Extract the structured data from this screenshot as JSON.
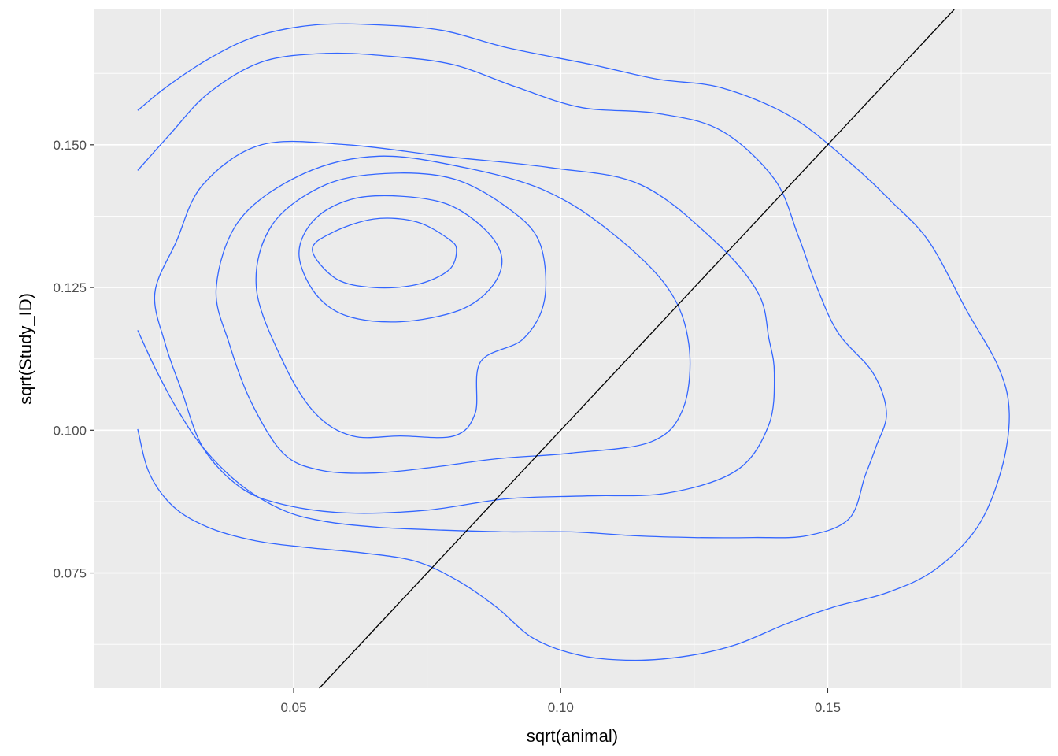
{
  "chart_data": {
    "type": "density_2d",
    "xlabel": "sqrt(animal)",
    "ylabel": "sqrt(Study_ID)",
    "xlim": [
      0.0127,
      0.1918
    ],
    "ylim": [
      0.0548,
      0.1737
    ],
    "x_ticks": [
      0.05,
      0.1,
      0.15
    ],
    "x_tick_labels": [
      "0.05",
      "0.10",
      "0.15"
    ],
    "y_ticks": [
      0.075,
      0.1,
      0.125,
      0.15
    ],
    "y_tick_labels": [
      "0.075",
      "0.100",
      "0.125",
      "0.150"
    ],
    "grid": true,
    "colors": {
      "panel_background": "#ebebeb",
      "grid_major": "#ffffff",
      "contour": "#3366ff",
      "reference_line": "#000000",
      "tick_label": "#4d4d4d"
    },
    "reference_line": {
      "intercept": 0,
      "slope": 1,
      "label": "y = x"
    },
    "contours": [
      {
        "level": 1,
        "closed": false,
        "points": [
          [
            0.0208,
            0.1002
          ],
          [
            0.023,
            0.0924
          ],
          [
            0.0275,
            0.0866
          ],
          [
            0.034,
            0.083
          ],
          [
            0.0425,
            0.0807
          ],
          [
            0.052,
            0.0795
          ],
          [
            0.063,
            0.0785
          ],
          [
            0.073,
            0.077
          ],
          [
            0.081,
            0.0735
          ],
          [
            0.088,
            0.069
          ],
          [
            0.095,
            0.0635
          ],
          [
            0.104,
            0.0605
          ],
          [
            0.114,
            0.0597
          ],
          [
            0.124,
            0.0605
          ],
          [
            0.133,
            0.0625
          ],
          [
            0.142,
            0.066
          ],
          [
            0.151,
            0.069
          ],
          [
            0.161,
            0.0715
          ],
          [
            0.17,
            0.0755
          ],
          [
            0.178,
            0.083
          ],
          [
            0.1825,
            0.093
          ],
          [
            0.184,
            0.103
          ],
          [
            0.182,
            0.111
          ],
          [
            0.176,
            0.121
          ],
          [
            0.169,
            0.133
          ],
          [
            0.162,
            0.14
          ],
          [
            0.154,
            0.147
          ],
          [
            0.143,
            0.155
          ],
          [
            0.13,
            0.16
          ],
          [
            0.118,
            0.1615
          ],
          [
            0.106,
            0.164
          ],
          [
            0.09,
            0.167
          ],
          [
            0.078,
            0.17
          ],
          [
            0.066,
            0.171
          ],
          [
            0.054,
            0.171
          ],
          [
            0.043,
            0.169
          ],
          [
            0.034,
            0.165
          ],
          [
            0.026,
            0.16
          ],
          [
            0.0208,
            0.156
          ]
        ]
      },
      {
        "level": 2,
        "closed": false,
        "points": [
          [
            0.0208,
            0.1175
          ],
          [
            0.024,
            0.111
          ],
          [
            0.028,
            0.104
          ],
          [
            0.033,
            0.097
          ],
          [
            0.04,
            0.0905
          ],
          [
            0.048,
            0.086
          ],
          [
            0.056,
            0.084
          ],
          [
            0.066,
            0.083
          ],
          [
            0.078,
            0.0825
          ],
          [
            0.09,
            0.0822
          ],
          [
            0.102,
            0.0822
          ],
          [
            0.114,
            0.0815
          ],
          [
            0.125,
            0.0812
          ],
          [
            0.136,
            0.0812
          ],
          [
            0.146,
            0.0815
          ],
          [
            0.154,
            0.0845
          ],
          [
            0.157,
            0.092
          ],
          [
            0.159,
            0.097
          ],
          [
            0.161,
            0.103
          ],
          [
            0.1585,
            0.11
          ],
          [
            0.152,
            0.117
          ],
          [
            0.148,
            0.125
          ],
          [
            0.1445,
            0.134
          ],
          [
            0.14,
            0.144
          ],
          [
            0.13,
            0.1525
          ],
          [
            0.118,
            0.1555
          ],
          [
            0.104,
            0.1565
          ],
          [
            0.092,
            0.16
          ],
          [
            0.08,
            0.164
          ],
          [
            0.068,
            0.1655
          ],
          [
            0.056,
            0.166
          ],
          [
            0.044,
            0.1645
          ],
          [
            0.034,
            0.159
          ],
          [
            0.027,
            0.152
          ],
          [
            0.0208,
            0.1455
          ]
        ]
      },
      {
        "level": 3,
        "closed": true,
        "points": [
          [
            0.028,
            0.133
          ],
          [
            0.033,
            0.143
          ],
          [
            0.044,
            0.15
          ],
          [
            0.06,
            0.15
          ],
          [
            0.078,
            0.148
          ],
          [
            0.098,
            0.146
          ],
          [
            0.115,
            0.143
          ],
          [
            0.129,
            0.133
          ],
          [
            0.137,
            0.124
          ],
          [
            0.139,
            0.116
          ],
          [
            0.14,
            0.11
          ],
          [
            0.139,
            0.101
          ],
          [
            0.133,
            0.093
          ],
          [
            0.12,
            0.089
          ],
          [
            0.105,
            0.0885
          ],
          [
            0.09,
            0.088
          ],
          [
            0.075,
            0.086
          ],
          [
            0.06,
            0.0855
          ],
          [
            0.048,
            0.087
          ],
          [
            0.04,
            0.09
          ],
          [
            0.033,
            0.097
          ],
          [
            0.029,
            0.107
          ],
          [
            0.026,
            0.115
          ],
          [
            0.024,
            0.124
          ],
          [
            0.028,
            0.133
          ]
        ]
      },
      {
        "level": 4,
        "closed": true,
        "points": [
          [
            0.0355,
            0.125
          ],
          [
            0.04,
            0.137
          ],
          [
            0.052,
            0.145
          ],
          [
            0.066,
            0.148
          ],
          [
            0.082,
            0.146
          ],
          [
            0.097,
            0.142
          ],
          [
            0.109,
            0.135
          ],
          [
            0.12,
            0.125
          ],
          [
            0.124,
            0.115
          ],
          [
            0.123,
            0.104
          ],
          [
            0.117,
            0.098
          ],
          [
            0.102,
            0.096
          ],
          [
            0.088,
            0.095
          ],
          [
            0.076,
            0.0935
          ],
          [
            0.065,
            0.0925
          ],
          [
            0.055,
            0.093
          ],
          [
            0.048,
            0.096
          ],
          [
            0.042,
            0.105
          ],
          [
            0.038,
            0.115
          ],
          [
            0.0355,
            0.125
          ]
        ]
      },
      {
        "level": 5,
        "closed": true,
        "points": [
          [
            0.043,
            0.125
          ],
          [
            0.046,
            0.136
          ],
          [
            0.056,
            0.143
          ],
          [
            0.068,
            0.145
          ],
          [
            0.08,
            0.144
          ],
          [
            0.09,
            0.139
          ],
          [
            0.096,
            0.133
          ],
          [
            0.097,
            0.123
          ],
          [
            0.093,
            0.116
          ],
          [
            0.085,
            0.112
          ],
          [
            0.084,
            0.103
          ],
          [
            0.08,
            0.099
          ],
          [
            0.07,
            0.099
          ],
          [
            0.061,
            0.099
          ],
          [
            0.054,
            0.103
          ],
          [
            0.048,
            0.112
          ],
          [
            0.043,
            0.125
          ]
        ]
      },
      {
        "level": 6,
        "closed": true,
        "points": [
          [
            0.051,
            0.131
          ],
          [
            0.054,
            0.137
          ],
          [
            0.061,
            0.1405
          ],
          [
            0.07,
            0.141
          ],
          [
            0.079,
            0.1395
          ],
          [
            0.086,
            0.135
          ],
          [
            0.089,
            0.13
          ],
          [
            0.087,
            0.125
          ],
          [
            0.081,
            0.121
          ],
          [
            0.07,
            0.119
          ],
          [
            0.06,
            0.12
          ],
          [
            0.054,
            0.124
          ],
          [
            0.051,
            0.131
          ]
        ]
      },
      {
        "level": 7,
        "closed": true,
        "points": [
          [
            0.0535,
            0.1315
          ],
          [
            0.057,
            0.1345
          ],
          [
            0.065,
            0.137
          ],
          [
            0.073,
            0.1365
          ],
          [
            0.079,
            0.1335
          ],
          [
            0.0805,
            0.1315
          ],
          [
            0.079,
            0.128
          ],
          [
            0.073,
            0.1255
          ],
          [
            0.065,
            0.125
          ],
          [
            0.058,
            0.1265
          ],
          [
            0.0535,
            0.1315
          ]
        ]
      }
    ]
  }
}
